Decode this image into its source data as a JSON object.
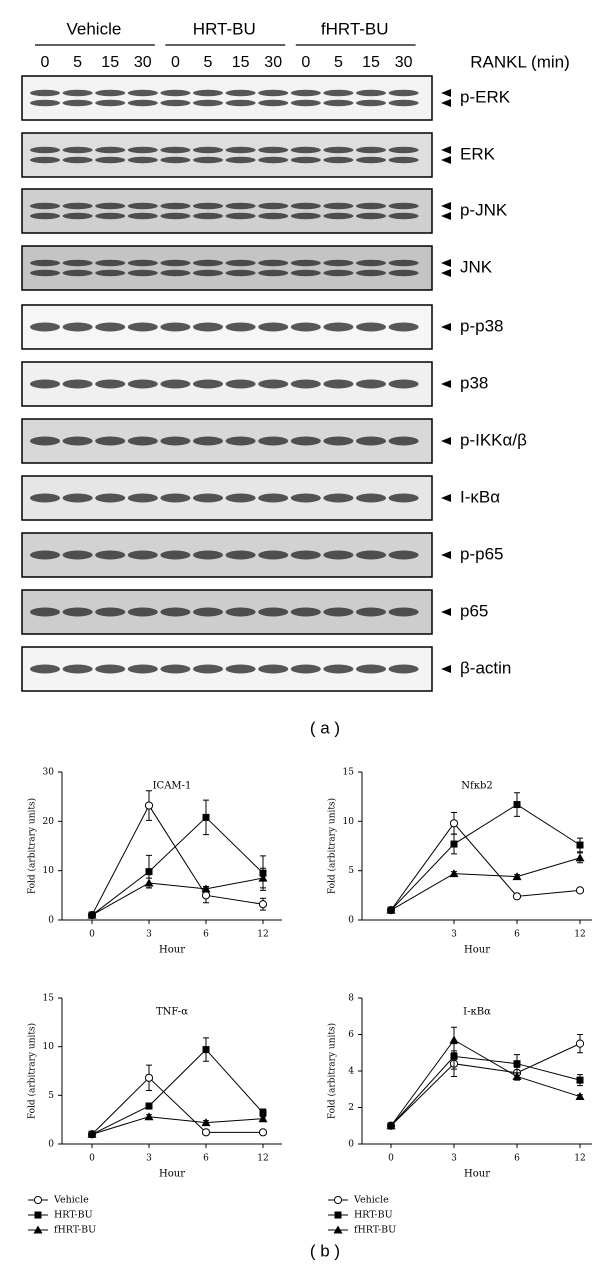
{
  "blot": {
    "groups": [
      "Vehicle",
      "HRT-BU",
      "fHRT-BU"
    ],
    "lanes": [
      "0",
      "5",
      "15",
      "30",
      "0",
      "5",
      "15",
      "30",
      "0",
      "5",
      "15",
      "30"
    ],
    "treatment_label": "RANKL (min)",
    "rows": [
      "p-ERK",
      "ERK",
      "p-JNK",
      "JNK",
      "p-p38",
      "p38",
      "p-IKKα/β",
      "I-κBα",
      "p-p65",
      "p65",
      "β-actin"
    ],
    "panel_label": "( a )"
  },
  "panel_b_label": "( b )",
  "chart_data": [
    {
      "type": "line",
      "title": "ICAM-1",
      "x_label": "Hour",
      "y_label": "Fold (arbitrary units)",
      "categories": [
        "0",
        "3",
        "6",
        "12"
      ],
      "ylim": [
        0,
        30
      ],
      "yticks": [
        0,
        10,
        20,
        30
      ],
      "legend": false,
      "series": [
        {
          "name": "Vehicle",
          "marker": "circle-open",
          "color": "#000000",
          "values": [
            1,
            23.2,
            5,
            3.2
          ],
          "errors": [
            0,
            3,
            1.5,
            1.2
          ]
        },
        {
          "name": "HRT-BU",
          "marker": "square",
          "color": "#000000",
          "values": [
            1,
            9.8,
            20.8,
            9.5
          ],
          "errors": [
            0,
            3.3,
            3.5,
            3.5
          ]
        },
        {
          "name": "fHRT-BU",
          "marker": "triangle",
          "color": "#000000",
          "values": [
            1,
            7.5,
            6.3,
            8.5
          ],
          "errors": [
            0,
            1,
            0.5,
            2
          ]
        }
      ]
    },
    {
      "type": "line",
      "title": "Nfκb2",
      "x_label": "Hour",
      "y_label": "Fold (arbitrary units)",
      "categories": [
        null,
        "3",
        "6",
        "12"
      ],
      "ylim": [
        0,
        15
      ],
      "yticks": [
        0,
        5,
        10,
        15
      ],
      "legend": false,
      "series": [
        {
          "name": "Vehicle",
          "marker": "circle-open",
          "color": "#000000",
          "values": [
            1,
            9.8,
            2.4,
            3
          ],
          "errors": [
            0,
            1.1,
            0.2,
            0.2
          ]
        },
        {
          "name": "HRT-BU",
          "marker": "square",
          "color": "#000000",
          "values": [
            1,
            7.7,
            11.7,
            7.6
          ],
          "errors": [
            0,
            1,
            1.2,
            0.7
          ]
        },
        {
          "name": "fHRT-BU",
          "marker": "triangle",
          "color": "#000000",
          "values": [
            1,
            4.7,
            4.4,
            6.3
          ],
          "errors": [
            0,
            0.2,
            0.2,
            0.5
          ]
        }
      ]
    },
    {
      "type": "line",
      "title": "TNF-α",
      "x_label": "Hour",
      "y_label": "Fold (arbitrary units)",
      "categories": [
        "0",
        "3",
        "6",
        "12"
      ],
      "ylim": [
        0,
        15
      ],
      "yticks": [
        0,
        5,
        10,
        15
      ],
      "legend": true,
      "series": [
        {
          "name": "Vehicle",
          "marker": "circle-open",
          "color": "#000000",
          "values": [
            1,
            6.8,
            1.2,
            1.2
          ],
          "errors": [
            0,
            1.3,
            0.1,
            0.1
          ]
        },
        {
          "name": "HRT-BU",
          "marker": "square",
          "color": "#000000",
          "values": [
            1,
            3.9,
            9.7,
            3.2
          ],
          "errors": [
            0,
            0.3,
            1.2,
            0.4
          ]
        },
        {
          "name": "fHRT-BU",
          "marker": "triangle",
          "color": "#000000",
          "values": [
            1,
            2.8,
            2.2,
            2.6
          ],
          "errors": [
            0,
            0.2,
            0.2,
            0.2
          ]
        }
      ]
    },
    {
      "type": "line",
      "title": "I-κBα",
      "x_label": "Hour",
      "y_label": "Fold (arbitrary units)",
      "categories": [
        "0",
        "3",
        "6",
        "12"
      ],
      "ylim": [
        0,
        8
      ],
      "yticks": [
        0,
        2,
        4,
        6,
        8
      ],
      "legend": true,
      "series": [
        {
          "name": "Vehicle",
          "marker": "circle-open",
          "color": "#000000",
          "values": [
            1,
            4.4,
            3.9,
            5.5
          ],
          "errors": [
            0,
            0.7,
            0.3,
            0.5
          ]
        },
        {
          "name": "HRT-BU",
          "marker": "square",
          "color": "#000000",
          "values": [
            1,
            4.8,
            4.4,
            3.5
          ],
          "errors": [
            0,
            0.7,
            0.5,
            0.3
          ]
        },
        {
          "name": "fHRT-BU",
          "marker": "triangle",
          "color": "#000000",
          "values": [
            1,
            5.7,
            3.7,
            2.6
          ],
          "errors": [
            0,
            0.7,
            0.2,
            0.1
          ]
        }
      ]
    }
  ]
}
